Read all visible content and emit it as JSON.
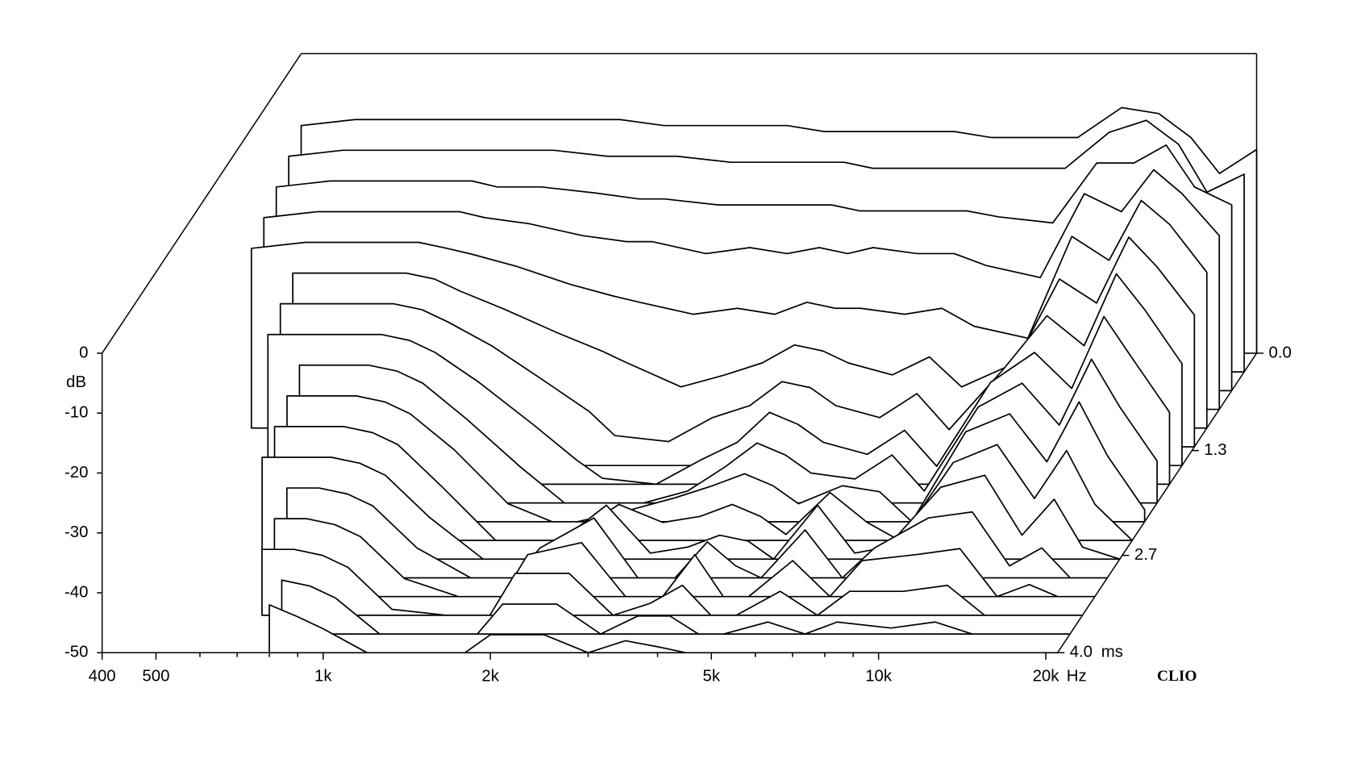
{
  "chart_data": {
    "type": "waterfall",
    "y_unit": "dB",
    "x_unit": "Hz",
    "z_unit": "ms",
    "brand": "CLIO",
    "x": [
      400,
      500,
      600,
      700,
      800,
      900,
      1000,
      1200,
      1500,
      1800,
      2000,
      2500,
      3000,
      3500,
      4000,
      4500,
      5000,
      6000,
      7000,
      8000,
      10000,
      12000,
      14000,
      16000,
      18000,
      21000
    ],
    "xlim": [
      400,
      21000
    ],
    "xscale": "log",
    "xticks": [
      400,
      500,
      {
        "value": 1000,
        "label": "1k"
      },
      {
        "value": 2000,
        "label": "2k"
      },
      {
        "value": 5000,
        "label": "5k"
      },
      {
        "value": 10000,
        "label": "10k"
      },
      {
        "value": 20000,
        "label": "20k"
      }
    ],
    "xminorticks": [
      600,
      700,
      800,
      900,
      3000,
      4000,
      6000,
      7000,
      8000,
      9000
    ],
    "ylim": [
      -50,
      0
    ],
    "yticks": [
      0,
      -10,
      -20,
      -30,
      -40,
      -50
    ],
    "zlim": [
      0,
      4.0
    ],
    "zticks": [
      {
        "value": 0,
        "label": "0.0"
      },
      1.3,
      2.7,
      {
        "value": 4,
        "label": "4.0"
      }
    ],
    "color": "#000000",
    "series": [
      {
        "t": 0,
        "values": [
          -12,
          -11,
          -11,
          -11,
          -11,
          -11,
          -11,
          -11,
          -11,
          -12,
          -12,
          -12,
          -12,
          -13,
          -13,
          -13,
          -13,
          -13,
          -14,
          -14,
          -14,
          -9,
          -10,
          -14,
          -20,
          -16
        ]
      },
      {
        "t": 0.25,
        "values": [
          -14,
          -13,
          -13,
          -13,
          -13,
          -13,
          -13,
          -13,
          -14,
          -14,
          -14,
          -15,
          -15,
          -15,
          -15,
          -16,
          -16,
          -16,
          -16,
          -16,
          -16,
          -10,
          -8,
          -12,
          -20,
          -17
        ]
      },
      {
        "t": 0.5,
        "values": [
          -16,
          -15,
          -15,
          -15,
          -15,
          -15,
          -16,
          -16,
          -17,
          -18,
          -18,
          -19,
          -19,
          -19,
          -19,
          -20,
          -20,
          -20,
          -20,
          -21,
          -22,
          -12,
          -12,
          -9,
          -16,
          -19
        ]
      },
      {
        "t": 0.75,
        "values": [
          -18,
          -17,
          -17,
          -17,
          -17,
          -17,
          -18,
          -19,
          -21,
          -22,
          -22,
          -24,
          -23,
          -24,
          -23,
          -24,
          -23,
          -24,
          -24,
          -26,
          -28,
          -14,
          -17,
          -10,
          -14,
          -21
        ]
      },
      {
        "t": 1,
        "values": [
          -20,
          -19,
          -19,
          -19,
          -19,
          -20,
          -21,
          -23,
          -26,
          -28,
          -29,
          -31,
          -30,
          -31,
          -29,
          -30,
          -30,
          -31,
          -30,
          -33,
          -35,
          -18,
          -22,
          -12,
          -16,
          -24
        ]
      },
      {
        "t": 1.25,
        "values": [
          null,
          -21,
          -21,
          -21,
          -21,
          -22,
          -24,
          -27,
          -31,
          -34,
          -36,
          -40,
          -38,
          -36,
          -33,
          -34,
          -36,
          -38,
          -35,
          -40,
          -36,
          -22,
          -26,
          -15,
          -20,
          -28
        ]
      },
      {
        "t": 1.5,
        "values": [
          null,
          -23,
          -23,
          -23,
          -23,
          -24,
          -26,
          -30,
          -36,
          -41,
          -45,
          -46,
          -42,
          -40,
          -36,
          -37,
          -40,
          -42,
          -38,
          -44,
          -34,
          -25,
          -30,
          -18,
          -24,
          -33
        ]
      },
      {
        "t": 1.75,
        "values": [
          null,
          -25,
          -25,
          -25,
          -25,
          -26,
          -28,
          -33,
          -40,
          -46,
          -49,
          -50,
          -46,
          -43,
          -38,
          -40,
          -43,
          -45,
          -41,
          -47,
          -33,
          -28,
          -34,
          -22,
          -29,
          -38
        ]
      },
      {
        "t": 2,
        "values": [
          null,
          null,
          -27,
          -27,
          -27,
          -28,
          -30,
          -36,
          -44,
          -50,
          -50,
          -50,
          -48,
          -44,
          -40,
          -42,
          -45,
          -46,
          -42,
          -48,
          -34,
          -30,
          -37,
          -26,
          -34,
          -43
        ]
      },
      {
        "t": 2.25,
        "values": [
          null,
          null,
          -29,
          -29,
          -29,
          -30,
          -32,
          -38,
          -47,
          -50,
          -50,
          -48,
          -46,
          -44,
          -42,
          -44,
          -47,
          -44,
          -45,
          -50,
          -35,
          -32,
          -40,
          -30,
          -39,
          -48
        ]
      },
      {
        "t": 2.5,
        "values": [
          null,
          null,
          -31,
          -31,
          -31,
          -32,
          -34,
          -41,
          -50,
          -50,
          -50,
          -44,
          -47,
          -46,
          -44,
          -46,
          -49,
          -42,
          -47,
          -50,
          -37,
          -34,
          -43,
          -35,
          -44,
          -50
        ]
      },
      {
        "t": 2.75,
        "values": [
          null,
          null,
          -33,
          -33,
          -33,
          -34,
          -36,
          -43,
          -50,
          -50,
          -48,
          -41,
          -49,
          -48,
          -46,
          -47,
          -50,
          -41,
          -49,
          -48,
          -38,
          -36,
          -46,
          -40,
          -48,
          -50
        ]
      },
      {
        "t": 3,
        "values": [
          null,
          null,
          null,
          -35,
          -35,
          -36,
          -38,
          -45,
          -50,
          -50,
          -45,
          -40,
          -50,
          -50,
          -44,
          -48,
          -50,
          -42,
          -50,
          -45,
          -40,
          -39,
          -48,
          -45,
          -50,
          -50
        ]
      },
      {
        "t": 3.25,
        "values": [
          null,
          null,
          null,
          -37,
          -37,
          -38,
          -40,
          -47,
          -50,
          -50,
          -43,
          -41,
          -50,
          -50,
          -43,
          -50,
          -50,
          -44,
          -50,
          -44,
          -43,
          -42,
          -50,
          -48,
          -50,
          -50
        ]
      },
      {
        "t": 3.5,
        "values": [
          null,
          null,
          null,
          -39,
          -39,
          -40,
          -42,
          -49,
          -50,
          -50,
          -43,
          -43,
          -50,
          -48,
          -45,
          -50,
          -50,
          -46,
          -50,
          -46,
          -46,
          -45,
          -50,
          -50,
          -50,
          -50
        ]
      },
      {
        "t": 3.75,
        "values": [
          null,
          null,
          null,
          null,
          -41,
          -42,
          -44,
          -50,
          -50,
          -50,
          -45,
          -45,
          -50,
          -47,
          -47,
          -50,
          -50,
          -48,
          -50,
          -48,
          -49,
          -48,
          -50,
          -50,
          -50,
          -50
        ]
      },
      {
        "t": 4,
        "values": [
          null,
          null,
          null,
          null,
          -42,
          -44,
          -46,
          -50,
          -50,
          -50,
          -47,
          -47,
          -50,
          -48,
          -49,
          -50,
          -50,
          -50,
          -50,
          -50,
          -50,
          -50,
          -50,
          -50,
          -50,
          -50
        ]
      }
    ]
  }
}
